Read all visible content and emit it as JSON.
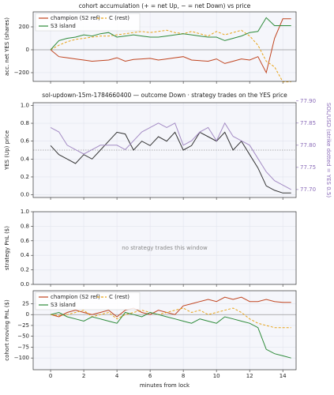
{
  "chart_data": [
    {
      "type": "line",
      "title": "cohort accumulation (+ = net Up, − = net Down) vs price",
      "ylabel": "acc. net YES (shares)",
      "x": [
        0,
        0.5,
        1,
        1.5,
        2,
        2.5,
        3,
        3.5,
        4,
        4.5,
        5,
        5.5,
        6,
        6.5,
        7,
        7.5,
        8,
        8.5,
        9,
        9.5,
        10,
        10.5,
        11,
        11.5,
        12,
        12.5,
        13,
        13.5,
        14,
        14.5
      ],
      "series": [
        {
          "name": "champion (S2 ref)",
          "color": "#c0441f",
          "dash": false,
          "values": [
            0,
            -60,
            -70,
            -80,
            -90,
            -100,
            -95,
            -90,
            -70,
            -100,
            -85,
            -80,
            -75,
            -90,
            -80,
            -70,
            -60,
            -90,
            -95,
            -100,
            -80,
            -120,
            -100,
            -80,
            -90,
            -60,
            -200,
            100,
            270,
            270
          ]
        },
        {
          "name": "C (rest)",
          "color": "#e8a317",
          "dash": true,
          "values": [
            0,
            40,
            70,
            90,
            100,
            110,
            120,
            120,
            130,
            140,
            150,
            160,
            150,
            160,
            170,
            150,
            140,
            160,
            140,
            120,
            160,
            130,
            150,
            170,
            120,
            40,
            -100,
            -150,
            -280,
            -280
          ]
        },
        {
          "name": "S3 island",
          "color": "#2e8b3a",
          "dash": false,
          "values": [
            0,
            80,
            100,
            110,
            130,
            120,
            140,
            150,
            110,
            120,
            130,
            120,
            110,
            110,
            120,
            130,
            140,
            130,
            120,
            110,
            110,
            80,
            100,
            120,
            150,
            160,
            280,
            210,
            210,
            210
          ]
        }
      ],
      "xlim": [
        -1.05,
        14.8
      ],
      "xticks": [
        0,
        2,
        4,
        6,
        8,
        10,
        12,
        14
      ],
      "ylim": [
        -276,
        331
      ],
      "yticks": [
        {
          "value": -200,
          "label": "−200"
        },
        0,
        200
      ],
      "hline": 0,
      "legend": "upper left",
      "grid": true
    },
    {
      "type": "line",
      "title": "sol-updown-15m-1784660400 — outcome Down · strategy trades on the YES price",
      "ylabel": "YES (Up) price",
      "y2label": "SOL/USD (strike dotted = YES 0.5)",
      "x": [
        0,
        0.5,
        1,
        1.5,
        2,
        2.5,
        3,
        3.5,
        4,
        4.5,
        5,
        5.5,
        6,
        6.5,
        7,
        7.5,
        8,
        8.5,
        9,
        9.5,
        10,
        10.5,
        11,
        11.5,
        12,
        12.5,
        13,
        13.5,
        14,
        14.5
      ],
      "series": [
        {
          "name": "YES price",
          "color": "#333333",
          "values": [
            0.55,
            0.45,
            0.4,
            0.35,
            0.45,
            0.4,
            0.5,
            0.6,
            0.7,
            0.68,
            0.5,
            0.6,
            0.55,
            0.65,
            0.6,
            0.7,
            0.5,
            0.55,
            0.7,
            0.65,
            0.6,
            0.7,
            0.5,
            0.6,
            0.45,
            0.3,
            0.1,
            0.05,
            0.02,
            0.02
          ]
        },
        {
          "name": "SOL/USD",
          "color": "#a48cc4",
          "axis": "y2",
          "values": [
            77.84,
            77.83,
            77.8,
            77.79,
            77.78,
            77.79,
            77.8,
            77.8,
            77.8,
            77.79,
            77.81,
            77.83,
            77.84,
            77.85,
            77.84,
            77.85,
            77.8,
            77.81,
            77.83,
            77.84,
            77.81,
            77.85,
            77.82,
            77.81,
            77.8,
            77.77,
            77.74,
            77.72,
            77.71,
            77.7
          ]
        }
      ],
      "xlim": [
        -1.05,
        14.8
      ],
      "xticks": [
        0,
        2,
        4,
        6,
        8,
        10,
        12,
        14
      ],
      "ylim": [
        -0.03,
        1.03
      ],
      "yticks": [
        {
          "value": 0,
          "label": "0.0"
        },
        {
          "value": 0.2,
          "label": "0.2"
        },
        {
          "value": 0.4,
          "label": "0.4"
        },
        {
          "value": 0.6,
          "label": "0.6"
        },
        {
          "value": 0.8,
          "label": "0.8"
        },
        {
          "value": 1,
          "label": "1.0"
        }
      ],
      "y2lim": [
        77.682,
        77.896
      ],
      "y2ticks": [
        {
          "value": 77.7,
          "label": "77.70"
        },
        {
          "value": 77.75,
          "label": "77.75"
        },
        {
          "value": 77.8,
          "label": "77.80"
        },
        {
          "value": 77.85,
          "label": "77.85"
        },
        {
          "value": 77.9,
          "label": "77.90"
        }
      ],
      "y2color": "#8a6bb8",
      "hline": 0.5,
      "grid": true
    },
    {
      "type": "line",
      "ylabel": "strategy PnL ($)",
      "annotation": "no strategy trades this window",
      "xlim": [
        -1.05,
        14.8
      ],
      "xticks": [
        0,
        2,
        4,
        6,
        8,
        10,
        12,
        14
      ],
      "ylim": [
        0,
        1
      ],
      "yticks": [
        {
          "value": 0,
          "label": "0.0"
        },
        {
          "value": 0.2,
          "label": "0.2"
        },
        {
          "value": 0.4,
          "label": "0.4"
        },
        {
          "value": 0.6,
          "label": "0.6"
        },
        {
          "value": 0.8,
          "label": "0.8"
        },
        {
          "value": 1,
          "label": "1.0"
        }
      ],
      "grid": true
    },
    {
      "type": "line",
      "ylabel": "cohort moving PnL ($)",
      "xlabel": "minutes from lock",
      "x": [
        0,
        0.5,
        1,
        1.5,
        2,
        2.5,
        3,
        3.5,
        4,
        4.5,
        5,
        5.5,
        6,
        6.5,
        7,
        7.5,
        8,
        8.5,
        9,
        9.5,
        10,
        10.5,
        11,
        11.5,
        12,
        12.5,
        13,
        13.5,
        14,
        14.5
      ],
      "series": [
        {
          "name": "champion (S2 ref)",
          "color": "#c0441f",
          "dash": false,
          "values": [
            0,
            -5,
            5,
            10,
            5,
            0,
            5,
            10,
            -5,
            10,
            15,
            5,
            0,
            10,
            5,
            0,
            20,
            25,
            30,
            35,
            30,
            40,
            35,
            40,
            30,
            30,
            35,
            30,
            28,
            28
          ]
        },
        {
          "name": "C (rest)",
          "color": "#e8a317",
          "dash": true,
          "values": [
            0,
            -2,
            0,
            5,
            10,
            -5,
            0,
            5,
            -10,
            0,
            5,
            10,
            5,
            0,
            5,
            10,
            15,
            5,
            10,
            0,
            5,
            10,
            15,
            5,
            -10,
            -20,
            -25,
            -30,
            -30,
            -30
          ]
        },
        {
          "name": "S3 island",
          "color": "#2e8b3a",
          "dash": false,
          "values": [
            0,
            5,
            -5,
            -10,
            -15,
            -5,
            -10,
            -15,
            -20,
            5,
            0,
            -5,
            5,
            0,
            -5,
            -10,
            -15,
            -20,
            -10,
            -15,
            -20,
            -5,
            -10,
            -15,
            -20,
            -30,
            -80,
            -90,
            -95,
            -100
          ]
        }
      ],
      "xlim": [
        -1.05,
        14.8
      ],
      "xticks": [
        0,
        2,
        4,
        6,
        8,
        10,
        12,
        14
      ],
      "show_xtick_labels": true,
      "ylim": [
        -127,
        55
      ],
      "yticks": [
        {
          "value": -100,
          "label": "−100"
        },
        {
          "value": -75,
          "label": "−75"
        },
        {
          "value": -50,
          "label": "−50"
        },
        {
          "value": -25,
          "label": "−25"
        },
        0,
        25
      ],
      "hline": 0,
      "legend": "upper left",
      "grid": true
    }
  ]
}
